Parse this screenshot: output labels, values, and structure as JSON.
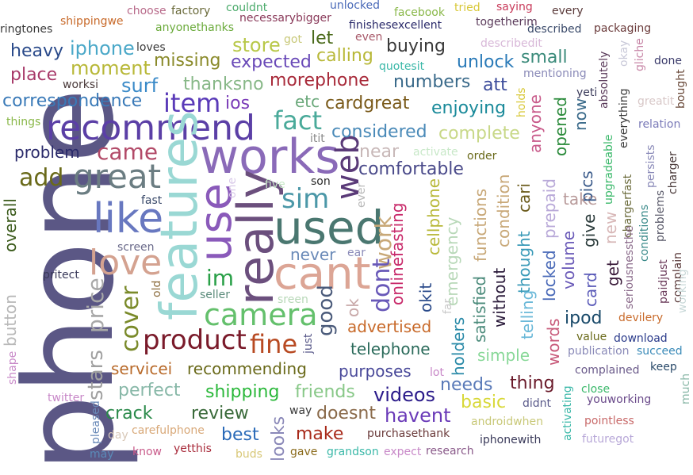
{
  "words": [
    {
      "text": "phone",
      "color": "#5b5785",
      "rotated": true
    },
    {
      "text": "recommend",
      "color": "#5b3fa6",
      "rotated": false
    },
    {
      "text": "works",
      "color": "#8a6ab8",
      "rotated": false
    },
    {
      "text": "used",
      "color": "#4a7770",
      "rotated": false
    },
    {
      "text": "features",
      "color": "#9ad8d4",
      "rotated": true
    },
    {
      "text": "use",
      "color": "#8a5aba",
      "rotated": true
    },
    {
      "text": "really",
      "color": "#6b4f7d",
      "rotated": true
    },
    {
      "text": "cant",
      "color": "#dca595",
      "rotated": false
    },
    {
      "text": "like",
      "color": "#6878c0",
      "rotated": false
    },
    {
      "text": "love",
      "color": "#d4a290",
      "rotated": false
    },
    {
      "text": "great",
      "color": "#6b7d82",
      "rotated": false
    },
    {
      "text": "camera",
      "color": "#64c06c",
      "rotated": false
    },
    {
      "text": "web",
      "color": "#5a3a78",
      "rotated": true
    },
    {
      "text": "product",
      "color": "#7a1a2a",
      "rotated": false
    },
    {
      "text": "fine",
      "color": "#b84a22",
      "rotated": false
    },
    {
      "text": "sim",
      "color": "#4c98a8",
      "rotated": false
    },
    {
      "text": "fact",
      "color": "#4aaa9a",
      "rotated": false
    },
    {
      "text": "came",
      "color": "#b24a68",
      "rotated": false
    },
    {
      "text": "item",
      "color": "#5a3ab8",
      "rotated": false
    },
    {
      "text": "work",
      "color": "#c8a878",
      "rotated": true
    },
    {
      "text": "dont",
      "color": "#6858b8",
      "rotated": true
    },
    {
      "text": "good",
      "color": "#4a5a7a",
      "rotated": true
    },
    {
      "text": "im",
      "color": "#2aa048",
      "rotated": false
    },
    {
      "text": "price",
      "color": "#a8a8a8",
      "rotated": true
    },
    {
      "text": "cover",
      "color": "#7a8a2a",
      "rotated": true
    },
    {
      "text": "stars",
      "color": "#a0a0a0",
      "rotated": true
    },
    {
      "text": "add",
      "color": "#6a6a1a",
      "rotated": false
    },
    {
      "text": "store",
      "color": "#b8c848",
      "rotated": false
    },
    {
      "text": "iphone",
      "color": "#4aa8c8",
      "rotated": false
    },
    {
      "text": "heavy",
      "color": "#2a4a8a",
      "rotated": false
    },
    {
      "text": "place",
      "color": "#a83a6a",
      "rotated": false
    },
    {
      "text": "moment",
      "color": "#b8b838",
      "rotated": false
    },
    {
      "text": "surf",
      "color": "#3a8ac8",
      "rotated": false
    },
    {
      "text": "correspondence",
      "color": "#3a7ab8",
      "rotated": false
    },
    {
      "text": "missing",
      "color": "#8a8a2a",
      "rotated": false
    },
    {
      "text": "expected",
      "color": "#6a4ab8",
      "rotated": false
    },
    {
      "text": "let",
      "color": "#4a6a1a",
      "rotated": false
    },
    {
      "text": "calling",
      "color": "#b8b838",
      "rotated": false
    },
    {
      "text": "buying",
      "color": "#3a3a3a",
      "rotated": false
    },
    {
      "text": "unlock",
      "color": "#2a7ab8",
      "rotated": false
    },
    {
      "text": "small",
      "color": "#3a8a7a",
      "rotated": false
    },
    {
      "text": "thanksno",
      "color": "#88b888",
      "rotated": false
    },
    {
      "text": "morephone",
      "color": "#a82a3a",
      "rotated": false
    },
    {
      "text": "numbers",
      "color": "#3a6a8a",
      "rotated": false
    },
    {
      "text": "att",
      "color": "#3a4a9a",
      "rotated": false
    },
    {
      "text": "ios",
      "color": "#7a3ab8",
      "rotated": false
    },
    {
      "text": "etc",
      "color": "#6aa87a",
      "rotated": false
    },
    {
      "text": "cardgreat",
      "color": "#7a5a1a",
      "rotated": false
    },
    {
      "text": "enjoying",
      "color": "#1a8a9a",
      "rotated": false
    },
    {
      "text": "considered",
      "color": "#4a8ab8",
      "rotated": false
    },
    {
      "text": "complete",
      "color": "#c8d888",
      "rotated": false
    },
    {
      "text": "problem",
      "color": "#2a2a6a",
      "rotated": false
    },
    {
      "text": "near",
      "color": "#c8b8b8",
      "rotated": false
    },
    {
      "text": "comfortable",
      "color": "#4a4a8a",
      "rotated": false
    },
    {
      "text": "overall",
      "color": "#3a5a1a",
      "rotated": true
    },
    {
      "text": "button",
      "color": "#b8b8b8",
      "rotated": true
    },
    {
      "text": "never",
      "color": "#6a8ab8",
      "rotated": false
    },
    {
      "text": "onlinefasting",
      "color": "#c82a6a",
      "rotated": true
    },
    {
      "text": "cellphone",
      "color": "#b8b838",
      "rotated": true
    },
    {
      "text": "emergency",
      "color": "#b8d8b8",
      "rotated": true
    },
    {
      "text": "okit",
      "color": "#2a4a8a",
      "rotated": true
    },
    {
      "text": "ok",
      "color": "#c8a8a8",
      "rotated": true
    },
    {
      "text": "advertised",
      "color": "#c86a2a",
      "rotated": false
    },
    {
      "text": "telephone",
      "color": "#2a6a5a",
      "rotated": false
    },
    {
      "text": "servicei",
      "color": "#b86a2a",
      "rotated": false
    },
    {
      "text": "recommending",
      "color": "#6a6a1a",
      "rotated": false
    },
    {
      "text": "purposes",
      "color": "#4a4a9a",
      "rotated": false
    },
    {
      "text": "perfect",
      "color": "#88b8a8",
      "rotated": false
    },
    {
      "text": "shipping",
      "color": "#2ab83a",
      "rotated": false
    },
    {
      "text": "friends",
      "color": "#88c888",
      "rotated": false
    },
    {
      "text": "videos",
      "color": "#2a1a8a",
      "rotated": false
    },
    {
      "text": "crack",
      "color": "#2a8a4a",
      "rotated": false
    },
    {
      "text": "review",
      "color": "#3a6a3a",
      "rotated": false
    },
    {
      "text": "doesnt",
      "color": "#8a6a4a",
      "rotated": false
    },
    {
      "text": "havent",
      "color": "#6a3ab8",
      "rotated": false
    },
    {
      "text": "best",
      "color": "#2a6ab8",
      "rotated": false
    },
    {
      "text": "make",
      "color": "#a82a1a",
      "rotated": false
    },
    {
      "text": "looks",
      "color": "#8a88b8",
      "rotated": true
    },
    {
      "text": "needs",
      "color": "#5a7ab8",
      "rotated": false
    },
    {
      "text": "basic",
      "color": "#d8d838",
      "rotated": false
    },
    {
      "text": "thing",
      "color": "#6a1a2a",
      "rotated": false
    },
    {
      "text": "simple",
      "color": "#88d898",
      "rotated": false
    },
    {
      "text": "holders",
      "color": "#2a8aa8",
      "rotated": true
    },
    {
      "text": "satisfied",
      "color": "#4a8a7a",
      "rotated": true
    },
    {
      "text": "functions",
      "color": "#c8a878",
      "rotated": true
    },
    {
      "text": "condition",
      "color": "#c8a878",
      "rotated": true
    },
    {
      "text": "without",
      "color": "#2a1a3a",
      "rotated": true
    },
    {
      "text": "thought",
      "color": "#3a9ab8",
      "rotated": true
    },
    {
      "text": "telling",
      "color": "#6ab8d8",
      "rotated": true
    },
    {
      "text": "locked",
      "color": "#4a6ab8",
      "rotated": true
    },
    {
      "text": "prepaid",
      "color": "#b8a8d8",
      "rotated": true
    },
    {
      "text": "cari",
      "color": "#6a5a1a",
      "rotated": true
    },
    {
      "text": "anyone",
      "color": "#c85a8a",
      "rotated": true
    },
    {
      "text": "opened",
      "color": "#2a8a3a",
      "rotated": true
    },
    {
      "text": "now",
      "color": "#3a6a8a",
      "rotated": true
    },
    {
      "text": "words",
      "color": "#c85a7a",
      "rotated": true
    },
    {
      "text": "volume",
      "color": "#6a5ab8",
      "rotated": true
    },
    {
      "text": "ipod",
      "color": "#1a4a6a",
      "rotated": false
    },
    {
      "text": "card",
      "color": "#5a5ab8",
      "rotated": true
    },
    {
      "text": "give",
      "color": "#2a3a3a",
      "rotated": true
    },
    {
      "text": "take",
      "color": "#b89a9a",
      "rotated": false
    },
    {
      "text": "pics",
      "color": "#3a5a8a",
      "rotated": true
    },
    {
      "text": "new",
      "color": "#d8b8b8",
      "rotated": true
    },
    {
      "text": "get",
      "color": "#3a1a3a",
      "rotated": true
    },
    {
      "text": "value",
      "color": "#6a6a1a",
      "rotated": false
    },
    {
      "text": "download",
      "color": "#2a3a8a",
      "rotated": false
    },
    {
      "text": "publication",
      "color": "#8a8ab8",
      "rotated": false
    },
    {
      "text": "succeed",
      "color": "#3a8ab8",
      "rotated": false
    },
    {
      "text": "devilery",
      "color": "#c86a2a",
      "rotated": false
    },
    {
      "text": "complained",
      "color": "#6a5a8a",
      "rotated": false
    },
    {
      "text": "keep",
      "color": "#2a4a6a",
      "rotated": false
    },
    {
      "text": "close",
      "color": "#3ab86a",
      "rotated": false
    },
    {
      "text": "youworking",
      "color": "#6a4a8a",
      "rotated": false
    },
    {
      "text": "pointless",
      "color": "#c86a6a",
      "rotated": false
    },
    {
      "text": "futuregot",
      "color": "#b8a8d8",
      "rotated": false
    },
    {
      "text": "iphonewith",
      "color": "#3a3a5a",
      "rotated": false
    },
    {
      "text": "androidwhen",
      "color": "#c8c878",
      "rotated": false
    },
    {
      "text": "purchasethank",
      "color": "#6a3a3a",
      "rotated": false
    },
    {
      "text": "research",
      "color": "#8a5a8a",
      "rotated": false
    },
    {
      "text": "expect",
      "color": "#c888c8",
      "rotated": false
    },
    {
      "text": "grandson",
      "color": "#3ab8a8",
      "rotated": false
    },
    {
      "text": "gave",
      "color": "#8a6a1a",
      "rotated": false
    },
    {
      "text": "buds",
      "color": "#d8c878",
      "rotated": false
    },
    {
      "text": "yetthis",
      "color": "#a82a3a",
      "rotated": false
    },
    {
      "text": "know",
      "color": "#c85a8a",
      "rotated": false
    },
    {
      "text": "may",
      "color": "#5a8ab8",
      "rotated": false
    },
    {
      "text": "day",
      "color": "#d8c8b8",
      "rotated": false
    },
    {
      "text": "carefulphone",
      "color": "#d8a878",
      "rotated": false
    },
    {
      "text": "twitter",
      "color": "#c888c8",
      "rotated": false
    },
    {
      "text": "pleased",
      "color": "#6a8ab8",
      "rotated": true
    },
    {
      "text": "shape",
      "color": "#c888c8",
      "rotated": true
    },
    {
      "text": "way",
      "color": "#3a3a3a",
      "rotated": false
    },
    {
      "text": "didnt",
      "color": "#5a5a8a",
      "rotated": false
    },
    {
      "text": "activating",
      "color": "#3ab8a8",
      "rotated": true
    },
    {
      "text": "much",
      "color": "#8ab8a8",
      "rotated": true
    },
    {
      "text": "lot",
      "color": "#c888c8",
      "rotated": false
    },
    {
      "text": "just",
      "color": "#5a5a8a",
      "rotated": true
    },
    {
      "text": "sreen",
      "color": "#b8d8b8",
      "rotated": false
    },
    {
      "text": "seller",
      "color": "#5a8a7a",
      "rotated": false
    },
    {
      "text": "old",
      "color": "#8a6a3a",
      "rotated": true
    },
    {
      "text": "screen",
      "color": "#6a6a8a",
      "rotated": false
    },
    {
      "text": "pritect",
      "color": "#3a3a5a",
      "rotated": false
    },
    {
      "text": "ear",
      "color": "#8a8ab8",
      "rotated": false
    },
    {
      "text": "five",
      "color": "#c8e8c8",
      "rotated": false
    },
    {
      "text": "son",
      "color": "#2a2a2a",
      "rotated": false
    },
    {
      "text": "ever",
      "color": "#b8b8b8",
      "rotated": true
    },
    {
      "text": "one",
      "color": "#d8c8e8",
      "rotated": true
    },
    {
      "text": "fast",
      "color": "#3a4a6a",
      "rotated": false
    },
    {
      "text": "itit",
      "color": "#8a8a8a",
      "rotated": false
    },
    {
      "text": "activate",
      "color": "#c8e8c8",
      "rotated": false
    },
    {
      "text": "order",
      "color": "#6a6a1a",
      "rotated": false
    },
    {
      "text": "far",
      "color": "#c8c8c8",
      "rotated": true
    },
    {
      "text": "things",
      "color": "#8ab84a",
      "rotated": false
    },
    {
      "text": "ringtones",
      "color": "#3a3a3a",
      "rotated": false
    },
    {
      "text": "shippingwe",
      "color": "#c86a2a",
      "rotated": false
    },
    {
      "text": "choose",
      "color": "#b86a8a",
      "rotated": false
    },
    {
      "text": "factory",
      "color": "#6a6a3a",
      "rotated": false
    },
    {
      "text": "couldnt",
      "color": "#4aaa6a",
      "rotated": false
    },
    {
      "text": "unlocked",
      "color": "#4a6ab8",
      "rotated": false
    },
    {
      "text": "facebook",
      "color": "#8ab84a",
      "rotated": false
    },
    {
      "text": "tried",
      "color": "#d8c838",
      "rotated": false
    },
    {
      "text": "saying",
      "color": "#c83a5a",
      "rotated": false
    },
    {
      "text": "every",
      "color": "#5a3a3a",
      "rotated": false
    },
    {
      "text": "necessarybigger",
      "color": "#8a3a5a",
      "rotated": false
    },
    {
      "text": "anyonethanks",
      "color": "#6aaa3a",
      "rotated": false
    },
    {
      "text": "loves",
      "color": "#3a3a3a",
      "rotated": false
    },
    {
      "text": "finishesexcellent",
      "color": "#2a2a6a",
      "rotated": false
    },
    {
      "text": "togetherim",
      "color": "#5a3a5a",
      "rotated": false
    },
    {
      "text": "got",
      "color": "#c8c878",
      "rotated": false
    },
    {
      "text": "even",
      "color": "#a85a6a",
      "rotated": false
    },
    {
      "text": "describedit",
      "color": "#d8b8d8",
      "rotated": false
    },
    {
      "text": "described",
      "color": "#3a4a6a",
      "rotated": false
    },
    {
      "text": "packaging",
      "color": "#6a3a3a",
      "rotated": false
    },
    {
      "text": "quotesit",
      "color": "#3ab8a8",
      "rotated": false
    },
    {
      "text": "mentioning",
      "color": "#8a8ab8",
      "rotated": false
    },
    {
      "text": "worksi",
      "color": "#4a3a3a",
      "rotated": false
    },
    {
      "text": "okay",
      "color": "#c8c8d8",
      "rotated": true
    },
    {
      "text": "gliche",
      "color": "#c888a8",
      "rotated": true
    },
    {
      "text": "done",
      "color": "#3a3a6a",
      "rotated": false
    },
    {
      "text": "bought",
      "color": "#6a4a3a",
      "rotated": true
    },
    {
      "text": "yeti",
      "color": "#3a3a5a",
      "rotated": false
    },
    {
      "text": "absolutely",
      "color": "#5a3a5a",
      "rotated": true
    },
    {
      "text": "greatit",
      "color": "#d8c8c8",
      "rotated": false
    },
    {
      "text": "relation",
      "color": "#7a7ab8",
      "rotated": false
    },
    {
      "text": "everything",
      "color": "#3a3a3a",
      "rotated": true
    },
    {
      "text": "holds",
      "color": "#d8c838",
      "rotated": true
    },
    {
      "text": "upgradeable",
      "color": "#3ab86a",
      "rotated": true
    },
    {
      "text": "chargerfast",
      "color": "#6a6a3a",
      "rotated": true
    },
    {
      "text": "persists",
      "color": "#8a8ab8",
      "rotated": true
    },
    {
      "text": "charger",
      "color": "#4a3a3a",
      "rotated": true
    },
    {
      "text": "seriousnessthe",
      "color": "#8a6a8a",
      "rotated": true
    },
    {
      "text": "problems",
      "color": "#5a5a6a",
      "rotated": true
    },
    {
      "text": "conditions",
      "color": "#3a8a8a",
      "rotated": true
    },
    {
      "text": "paidjust",
      "color": "#6a3a5a",
      "rotated": true
    },
    {
      "text": "complain",
      "color": "#5a3a3a",
      "rotated": true
    },
    {
      "text": "working",
      "color": "#c8d8d8",
      "rotated": true
    }
  ]
}
